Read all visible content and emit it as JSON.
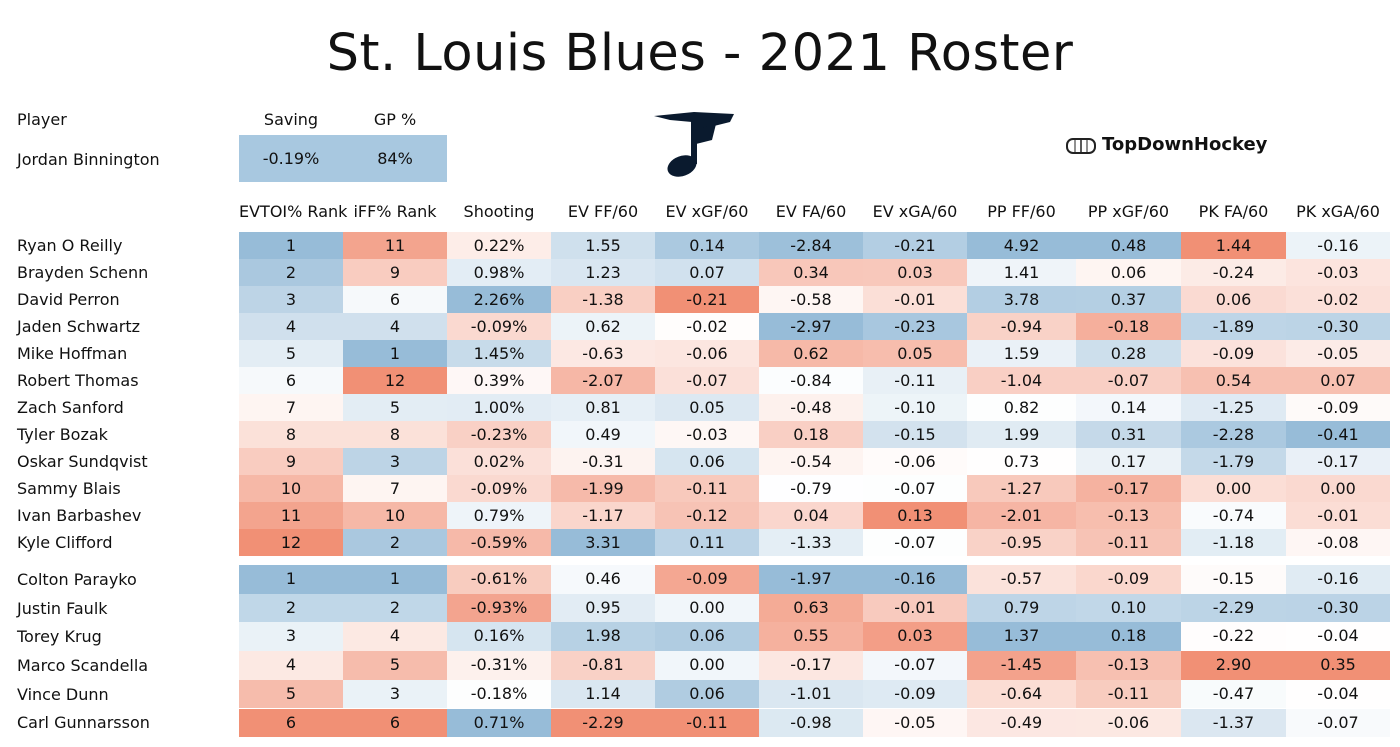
{
  "title": "St. Louis Blues - 2021 Roster",
  "brand": {
    "text": "TopDownHockey",
    "icon": "rink-icon"
  },
  "logo": {
    "icon": "blues-note-logo",
    "color": "#0a1a2e"
  },
  "goalie": {
    "header_player": "Player",
    "header_saving": "Saving",
    "header_gp": "GP %",
    "name": "Jordan Binnington",
    "saving": "-0.19%",
    "gp": "84%"
  },
  "colors": {
    "blue": "#91b8d6",
    "red": "#f08a6e",
    "white": "#ffffff"
  },
  "chart_data": {
    "type": "table",
    "columns": [
      "EVTOI% Rank",
      "iFF% Rank",
      "Shooting",
      "EV FF/60",
      "EV xGF/60",
      "EV FA/60",
      "EV xGA/60",
      "PP FF/60",
      "PP xGF/60",
      "PK FA/60",
      "PK xGA/60"
    ],
    "forwards": [
      {
        "player": "Ryan O Reilly",
        "values": [
          "1",
          "11",
          "0.22%",
          "1.55",
          "0.14",
          "-2.84",
          "-0.21",
          "4.92",
          "0.48",
          "1.44",
          "-0.16"
        ]
      },
      {
        "player": "Brayden Schenn",
        "values": [
          "2",
          "9",
          "0.98%",
          "1.23",
          "0.07",
          "0.34",
          "0.03",
          "1.41",
          "0.06",
          "-0.24",
          "-0.03"
        ]
      },
      {
        "player": "David Perron",
        "values": [
          "3",
          "6",
          "2.26%",
          "-1.38",
          "-0.21",
          "-0.58",
          "-0.01",
          "3.78",
          "0.37",
          "0.06",
          "-0.02"
        ]
      },
      {
        "player": "Jaden Schwartz",
        "values": [
          "4",
          "4",
          "-0.09%",
          "0.62",
          "-0.02",
          "-2.97",
          "-0.23",
          "-0.94",
          "-0.18",
          "-1.89",
          "-0.30"
        ]
      },
      {
        "player": "Mike Hoffman",
        "values": [
          "5",
          "1",
          "1.45%",
          "-0.63",
          "-0.06",
          "0.62",
          "0.05",
          "1.59",
          "0.28",
          "-0.09",
          "-0.05"
        ]
      },
      {
        "player": "Robert Thomas",
        "values": [
          "6",
          "12",
          "0.39%",
          "-2.07",
          "-0.07",
          "-0.84",
          "-0.11",
          "-1.04",
          "-0.07",
          "0.54",
          "0.07"
        ]
      },
      {
        "player": "Zach Sanford",
        "values": [
          "7",
          "5",
          "1.00%",
          "0.81",
          "0.05",
          "-0.48",
          "-0.10",
          "0.82",
          "0.14",
          "-1.25",
          "-0.09"
        ]
      },
      {
        "player": "Tyler Bozak",
        "values": [
          "8",
          "8",
          "-0.23%",
          "0.49",
          "-0.03",
          "0.18",
          "-0.15",
          "1.99",
          "0.31",
          "-2.28",
          "-0.41"
        ]
      },
      {
        "player": "Oskar Sundqvist",
        "values": [
          "9",
          "3",
          "0.02%",
          "-0.31",
          "0.06",
          "-0.54",
          "-0.06",
          "0.73",
          "0.17",
          "-1.79",
          "-0.17"
        ]
      },
      {
        "player": "Sammy Blais",
        "values": [
          "10",
          "7",
          "-0.09%",
          "-1.99",
          "-0.11",
          "-0.79",
          "-0.07",
          "-1.27",
          "-0.17",
          "0.00",
          "0.00"
        ]
      },
      {
        "player": "Ivan Barbashev",
        "values": [
          "11",
          "10",
          "0.79%",
          "-1.17",
          "-0.12",
          "0.04",
          "0.13",
          "-2.01",
          "-0.13",
          "-0.74",
          "-0.01"
        ]
      },
      {
        "player": "Kyle Clifford",
        "values": [
          "12",
          "2",
          "-0.59%",
          "3.31",
          "0.11",
          "-1.33",
          "-0.07",
          "-0.95",
          "-0.11",
          "-1.18",
          "-0.08"
        ]
      }
    ],
    "defense": [
      {
        "player": "Colton Parayko",
        "values": [
          "1",
          "1",
          "-0.61%",
          "0.46",
          "-0.09",
          "-1.97",
          "-0.16",
          "-0.57",
          "-0.09",
          "-0.15",
          "-0.16"
        ]
      },
      {
        "player": "Justin Faulk",
        "values": [
          "2",
          "2",
          "-0.93%",
          "0.95",
          "0.00",
          "0.63",
          "-0.01",
          "0.79",
          "0.10",
          "-2.29",
          "-0.30"
        ]
      },
      {
        "player": "Torey Krug",
        "values": [
          "3",
          "4",
          "0.16%",
          "1.98",
          "0.06",
          "0.55",
          "0.03",
          "1.37",
          "0.18",
          "-0.22",
          "-0.04"
        ]
      },
      {
        "player": "Marco Scandella",
        "values": [
          "4",
          "5",
          "-0.31%",
          "-0.81",
          "0.00",
          "-0.17",
          "-0.07",
          "-1.45",
          "-0.13",
          "2.90",
          "0.35"
        ]
      },
      {
        "player": "Vince Dunn",
        "values": [
          "5",
          "3",
          "-0.18%",
          "1.14",
          "0.06",
          "-1.01",
          "-0.09",
          "-0.64",
          "-0.11",
          "-0.47",
          "-0.04"
        ]
      },
      {
        "player": "Carl Gunnarsson",
        "values": [
          "6",
          "6",
          "0.71%",
          "-2.29",
          "-0.11",
          "-0.98",
          "-0.05",
          "-0.49",
          "-0.06",
          "-1.37",
          "-0.07"
        ]
      }
    ]
  }
}
